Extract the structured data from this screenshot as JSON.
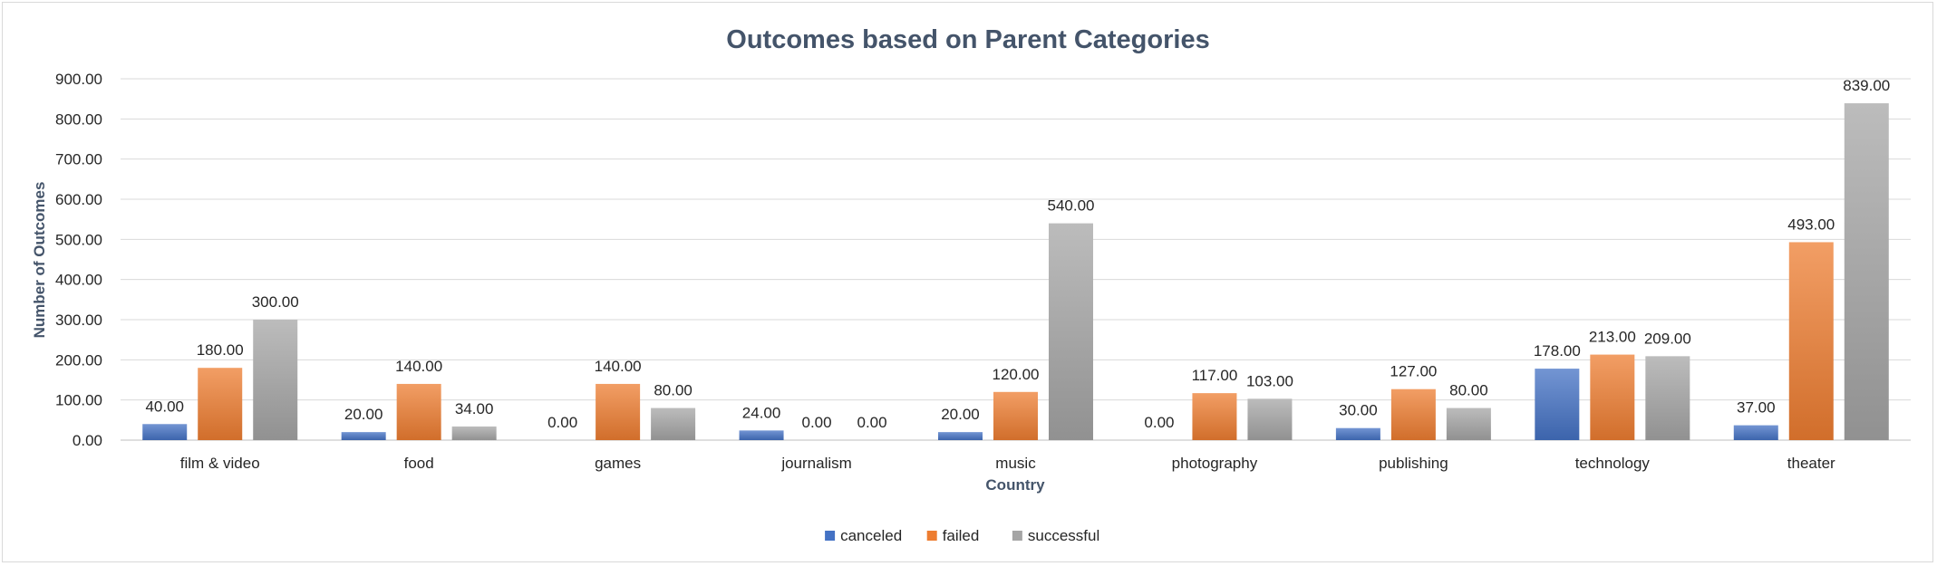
{
  "chart_data": {
    "type": "bar",
    "title": "Outcomes based on Parent Categories",
    "xlabel": "Country",
    "ylabel": "Number of Outcomes",
    "ylim": [
      0,
      900
    ],
    "ytick_step": 100,
    "number_format": "0.00",
    "grid": true,
    "legend_position": "bottom",
    "categories": [
      "film & video",
      "food",
      "games",
      "journalism",
      "music",
      "photography",
      "publishing",
      "technology",
      "theater"
    ],
    "series": [
      {
        "name": "canceled",
        "color": "#4472c4",
        "values": [
          40,
          20,
          0,
          24,
          20,
          0,
          30,
          178,
          37
        ]
      },
      {
        "name": "failed",
        "color": "#ed7d31",
        "values": [
          180,
          140,
          140,
          0,
          120,
          117,
          127,
          213,
          493
        ]
      },
      {
        "name": "successful",
        "color": "#a5a5a5",
        "values": [
          300,
          34,
          80,
          0,
          540,
          103,
          80,
          209,
          839
        ]
      }
    ]
  }
}
